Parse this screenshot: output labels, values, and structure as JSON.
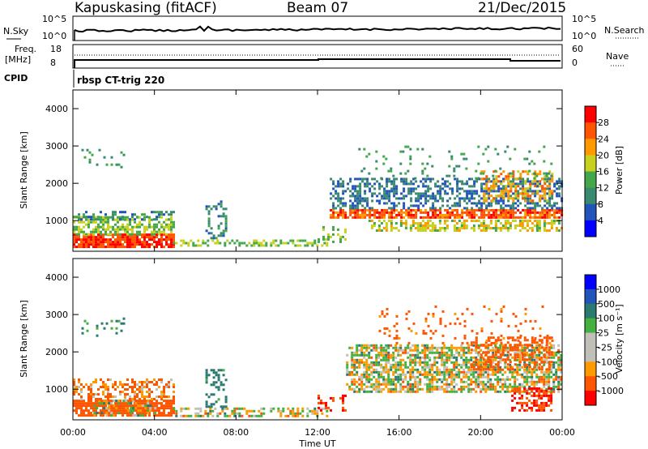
{
  "header": {
    "station": "Kapuskasing (fitACF)",
    "beam": "Beam 07",
    "date": "21/Dec/2015"
  },
  "noise_panel": {
    "left_label": "N.Sky",
    "left_ticks": [
      "10^5",
      "10^0"
    ],
    "right_label": "N.Search",
    "right_ticks": [
      "10^5",
      "10^0"
    ]
  },
  "freq_panel": {
    "left_label_line1": "Freq.",
    "left_label_line2": "[MHz]",
    "left_ticks": [
      "18",
      "8"
    ],
    "right_label": "Nave",
    "right_ticks": [
      "60",
      "0"
    ]
  },
  "cpid_panel": {
    "label": "CPID",
    "program": "rbsp CT-trig 220"
  },
  "x_axis": {
    "ticks": [
      "00:00",
      "04:00",
      "08:00",
      "12:00",
      "16:00",
      "20:00",
      "00:00"
    ],
    "label": "Time UT"
  },
  "colors": {
    "power_scale": [
      "#0000ff",
      "#2255bb",
      "#3a8a70",
      "#44a84a",
      "#c8d020",
      "#ff9900",
      "#ff5500",
      "#ff0000"
    ],
    "velocity_scale": [
      "#ff0000",
      "#ff5500",
      "#ff9900",
      "#c0c0b8",
      "#c0c0b8",
      "#44b040",
      "#2a7a70",
      "#2255bb",
      "#0000ff"
    ]
  },
  "chart_data": [
    {
      "type": "heatmap",
      "title": "Power",
      "xlabel": "Time UT",
      "ylabel": "Slant Range [km]",
      "yticks": [
        "1000",
        "2000",
        "3000",
        "4000"
      ],
      "xlim_hours": [
        0,
        24
      ],
      "ylim_km": [
        180,
        4500
      ],
      "colorbar": {
        "label": "Power [dB]",
        "ticks": [
          "4",
          "8",
          "12",
          "16",
          "20",
          "24",
          "28"
        ],
        "range": [
          0,
          30
        ]
      },
      "regions": [
        {
          "t0": 0.0,
          "t1": 4.9,
          "r0": 200,
          "r1": 650,
          "value": 28,
          "density": 0.9
        },
        {
          "t0": 0.0,
          "t1": 4.9,
          "r0": 600,
          "r1": 1100,
          "value": 16,
          "density": 0.6
        },
        {
          "t0": 0.0,
          "t1": 4.9,
          "r0": 1000,
          "r1": 1250,
          "value": 10,
          "density": 0.35
        },
        {
          "t0": 4.9,
          "t1": 12.5,
          "r0": 300,
          "r1": 450,
          "value": 16,
          "density": 0.5
        },
        {
          "t0": 6.5,
          "t1": 7.5,
          "r0": 500,
          "r1": 1500,
          "value": 10,
          "density": 0.35
        },
        {
          "t0": 12.0,
          "t1": 13.4,
          "r0": 400,
          "r1": 800,
          "value": 16,
          "density": 0.3
        },
        {
          "t0": 12.6,
          "t1": 24.0,
          "r0": 1050,
          "r1": 1300,
          "value": 26,
          "density": 0.8
        },
        {
          "t0": 12.6,
          "t1": 24.0,
          "r0": 1300,
          "r1": 2100,
          "value": 8,
          "density": 0.5
        },
        {
          "t0": 14.5,
          "t1": 24.0,
          "r0": 700,
          "r1": 1000,
          "value": 18,
          "density": 0.5
        },
        {
          "t0": 20.0,
          "t1": 23.5,
          "r0": 1500,
          "r1": 2300,
          "value": 22,
          "density": 0.45
        },
        {
          "t0": 14.0,
          "t1": 23.5,
          "r0": 2100,
          "r1": 3000,
          "value": 12,
          "density": 0.08
        },
        {
          "t0": 0.3,
          "t1": 2.5,
          "r0": 2400,
          "r1": 2900,
          "value": 12,
          "density": 0.12
        }
      ]
    },
    {
      "type": "heatmap",
      "title": "Velocity",
      "xlabel": "Time UT",
      "ylabel": "Slant Range [km]",
      "yticks": [
        "1000",
        "2000",
        "3000",
        "4000"
      ],
      "xlim_hours": [
        0,
        24
      ],
      "ylim_km": [
        180,
        4500
      ],
      "colorbar": {
        "label": "Velocity [m s⁻¹]",
        "ticks": [
          "1000",
          "500",
          "100",
          "25",
          "-25",
          "-100",
          "-500",
          "-1000"
        ],
        "range": [
          -1000,
          1000
        ]
      },
      "regions": [
        {
          "t0": 0.0,
          "t1": 4.9,
          "r0": 200,
          "r1": 700,
          "value": -300,
          "density": 0.85
        },
        {
          "t0": 1.0,
          "t1": 4.0,
          "r0": 200,
          "r1": 700,
          "value": 0,
          "density": 0.4
        },
        {
          "t0": 0.0,
          "t1": 4.9,
          "r0": 700,
          "r1": 1250,
          "value": -100,
          "density": 0.45
        },
        {
          "t0": 4.9,
          "t1": 12.5,
          "r0": 250,
          "r1": 450,
          "value": 0,
          "density": 0.5
        },
        {
          "t0": 6.5,
          "t1": 7.5,
          "r0": 500,
          "r1": 1500,
          "value": 200,
          "density": 0.35
        },
        {
          "t0": 12.0,
          "t1": 13.4,
          "r0": 400,
          "r1": 800,
          "value": -500,
          "density": 0.35
        },
        {
          "t0": 13.4,
          "t1": 24.0,
          "r0": 900,
          "r1": 2200,
          "value": 0,
          "density": 0.65
        },
        {
          "t0": 19.5,
          "t1": 23.5,
          "r0": 1500,
          "r1": 2400,
          "value": -300,
          "density": 0.4
        },
        {
          "t0": 21.5,
          "t1": 23.5,
          "r0": 400,
          "r1": 1000,
          "value": -500,
          "density": 0.5
        },
        {
          "t0": 15.0,
          "t1": 23.5,
          "r0": 2200,
          "r1": 3200,
          "value": -200,
          "density": 0.1
        },
        {
          "t0": 0.3,
          "t1": 2.5,
          "r0": 2400,
          "r1": 2900,
          "value": 150,
          "density": 0.12
        }
      ]
    }
  ]
}
